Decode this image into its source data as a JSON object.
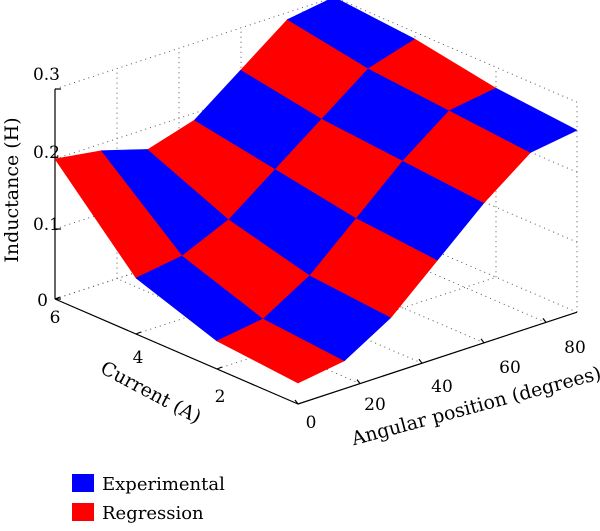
{
  "chart_data": {
    "type": "surface3d",
    "title": "",
    "xlabel": "Angular position (degrees)",
    "ylabel": "Current (A)",
    "zlabel": "Inductance (H)",
    "xlim": [
      0,
      90
    ],
    "ylim": [
      0,
      6
    ],
    "zlim": [
      0,
      0.3
    ],
    "x_ticks": [
      "0",
      "20",
      "40",
      "60",
      "80"
    ],
    "y_ticks": [
      "2",
      "4",
      "6"
    ],
    "z_ticks": [
      "0",
      "0.1",
      "0.2",
      "0.3"
    ],
    "grid": true,
    "legend_position": "bottom-left",
    "angles": [
      0,
      15,
      30,
      45,
      60,
      75,
      90
    ],
    "currents": [
      0,
      2,
      4,
      6
    ],
    "inductance": [
      [
        0.03,
        0.04,
        0.08,
        0.14,
        0.2,
        0.25,
        0.26
      ],
      [
        0.04,
        0.05,
        0.09,
        0.15,
        0.21,
        0.26,
        0.27
      ],
      [
        0.08,
        0.09,
        0.12,
        0.17,
        0.22,
        0.27,
        0.29
      ],
      [
        0.2,
        0.19,
        0.17,
        0.19,
        0.24,
        0.29,
        0.3
      ]
    ],
    "series": [
      {
        "name": "Experimental",
        "color": "#0000ff"
      },
      {
        "name": "Regression",
        "color": "#ff0000"
      }
    ]
  }
}
